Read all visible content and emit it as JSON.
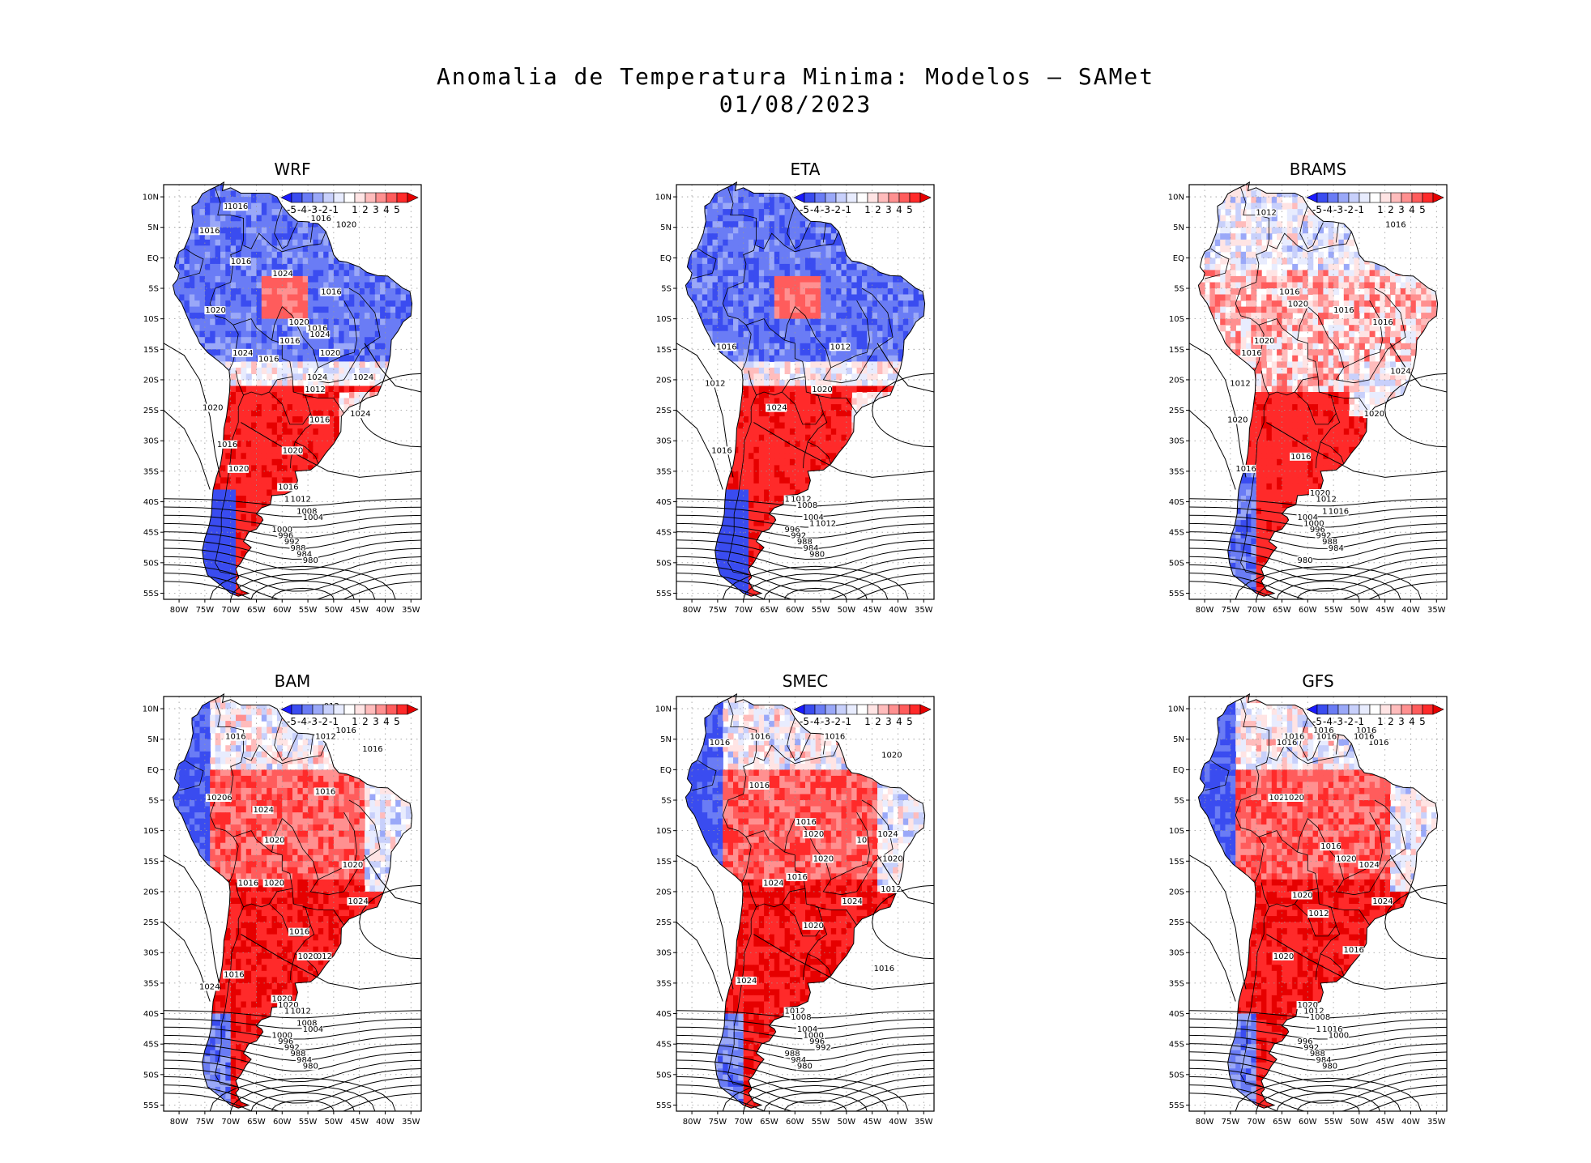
{
  "title_line1": "Anomalia de Temperatura Minima: Modelos — SAMet",
  "title_line2": "01/08/2023",
  "lat_ticks": [
    "10N",
    "5N",
    "EQ",
    "5S",
    "10S",
    "15S",
    "20S",
    "25S",
    "30S",
    "35S",
    "40S",
    "45S",
    "50S",
    "55S"
  ],
  "lon_ticks": [
    "80W",
    "75W",
    "70W",
    "65W",
    "60W",
    "55W",
    "50W",
    "45W",
    "40W",
    "35W"
  ],
  "colorbar": {
    "labels": [
      "-5",
      "-4",
      "-3",
      "-2",
      "-1",
      "1",
      "2",
      "3",
      "4",
      "5"
    ],
    "colors": [
      "#1a1aff",
      "#3a4cf0",
      "#6a7cf5",
      "#9aa8f8",
      "#c8d0fb",
      "#e8ecfe",
      "#ffffff",
      "#ffe4e4",
      "#ffbcbc",
      "#ff9090",
      "#ff5c5c",
      "#ff2a2a",
      "#e60000"
    ]
  },
  "panels": [
    {
      "title": "WRF",
      "regime": "cold_north",
      "isobars": [
        {
          "v": "1012",
          "lat": 8
        },
        {
          "v": "1016",
          "lat": 8
        },
        {
          "v": "1016",
          "lat": 6
        },
        {
          "v": "1020",
          "lat": 5
        },
        {
          "v": "1016",
          "lat": 4
        },
        {
          "v": "1016",
          "lat": -1
        },
        {
          "v": "1024",
          "lat": -3
        },
        {
          "v": "1016",
          "lat": -6
        },
        {
          "v": "1020",
          "lat": -9
        },
        {
          "v": "1020",
          "lat": -11
        },
        {
          "v": "1016",
          "lat": -12
        },
        {
          "v": "1024",
          "lat": -13
        },
        {
          "v": "1016",
          "lat": -14
        },
        {
          "v": "1024",
          "lat": -16
        },
        {
          "v": "1016",
          "lat": -17
        },
        {
          "v": "1020",
          "lat": -16
        },
        {
          "v": "1024",
          "lat": -20
        },
        {
          "v": "1024",
          "lat": -20
        },
        {
          "v": "1012",
          "lat": -22
        },
        {
          "v": "1020",
          "lat": -25
        },
        {
          "v": "1024",
          "lat": -26
        },
        {
          "v": "1016",
          "lat": -27
        },
        {
          "v": "1016",
          "lat": -31
        },
        {
          "v": "1020",
          "lat": -32
        },
        {
          "v": "1020",
          "lat": -35
        },
        {
          "v": "1016",
          "lat": -38
        },
        {
          "v": "1016",
          "lat": -40
        },
        {
          "v": "1012",
          "lat": -40
        },
        {
          "v": "1008",
          "lat": -42
        },
        {
          "v": "1004",
          "lat": -43
        },
        {
          "v": "1000",
          "lat": -45
        },
        {
          "v": "996",
          "lat": -46
        },
        {
          "v": "992",
          "lat": -47
        },
        {
          "v": "988",
          "lat": -48
        },
        {
          "v": "984",
          "lat": -49
        },
        {
          "v": "980",
          "lat": -50
        }
      ]
    },
    {
      "title": "ETA",
      "regime": "cold_north",
      "isobars": [
        {
          "v": "1012",
          "lat": -15
        },
        {
          "v": "1016",
          "lat": -15
        },
        {
          "v": "1012",
          "lat": -21
        },
        {
          "v": "1020",
          "lat": -22
        },
        {
          "v": "1024",
          "lat": -25
        },
        {
          "v": "1016",
          "lat": -32
        },
        {
          "v": "1020",
          "lat": -40
        },
        {
          "v": "1012",
          "lat": -40
        },
        {
          "v": "1008",
          "lat": -41
        },
        {
          "v": "1004",
          "lat": -43
        },
        {
          "v": "1000",
          "lat": -44
        },
        {
          "v": "1012",
          "lat": -44
        },
        {
          "v": "996",
          "lat": -45
        },
        {
          "v": "992",
          "lat": -46
        },
        {
          "v": "988",
          "lat": -47
        },
        {
          "v": "984",
          "lat": -48
        },
        {
          "v": "980",
          "lat": -49
        }
      ]
    },
    {
      "title": "BRAMS",
      "regime": "mixed",
      "isobars": [
        {
          "v": "1012",
          "lat": 7
        },
        {
          "v": "1016",
          "lat": 5
        },
        {
          "v": "1016",
          "lat": -6
        },
        {
          "v": "1020",
          "lat": -8
        },
        {
          "v": "1016",
          "lat": -9
        },
        {
          "v": "1016",
          "lat": -11
        },
        {
          "v": "1020",
          "lat": -14
        },
        {
          "v": "1016",
          "lat": -16
        },
        {
          "v": "1024",
          "lat": -19
        },
        {
          "v": "1012",
          "lat": -21
        },
        {
          "v": "1020",
          "lat": -26
        },
        {
          "v": "1020",
          "lat": -27
        },
        {
          "v": "1016",
          "lat": -33
        },
        {
          "v": "1016",
          "lat": -35
        },
        {
          "v": "1020",
          "lat": -39
        },
        {
          "v": "1012",
          "lat": -40
        },
        {
          "v": "1008",
          "lat": -42
        },
        {
          "v": "1016",
          "lat": -42
        },
        {
          "v": "1004",
          "lat": -43
        },
        {
          "v": "1000",
          "lat": -44
        },
        {
          "v": "996",
          "lat": -45
        },
        {
          "v": "992",
          "lat": -46
        },
        {
          "v": "988",
          "lat": -47
        },
        {
          "v": "984",
          "lat": -48
        },
        {
          "v": "980",
          "lat": -50
        }
      ]
    },
    {
      "title": "BAM",
      "regime": "warm",
      "isobars": [
        {
          "v": "012",
          "lat": 10
        },
        {
          "v": "1016",
          "lat": 6
        },
        {
          "v": "1012",
          "lat": 5
        },
        {
          "v": "1016",
          "lat": 5
        },
        {
          "v": "1016",
          "lat": 3
        },
        {
          "v": "1016",
          "lat": -4
        },
        {
          "v": "10206",
          "lat": -5
        },
        {
          "v": "1024",
          "lat": -7
        },
        {
          "v": "1020",
          "lat": -12
        },
        {
          "v": "1020",
          "lat": -16
        },
        {
          "v": "1020",
          "lat": -19
        },
        {
          "v": "1016",
          "lat": -19
        },
        {
          "v": "1024",
          "lat": -22
        },
        {
          "v": "1016",
          "lat": -27
        },
        {
          "v": "1012",
          "lat": -31
        },
        {
          "v": "1020",
          "lat": -31
        },
        {
          "v": "1016",
          "lat": -34
        },
        {
          "v": "1024",
          "lat": -36
        },
        {
          "v": "1020",
          "lat": -38
        },
        {
          "v": "1020",
          "lat": -39
        },
        {
          "v": "1016",
          "lat": -40
        },
        {
          "v": "1012",
          "lat": -40
        },
        {
          "v": "1008",
          "lat": -42
        },
        {
          "v": "1004",
          "lat": -43
        },
        {
          "v": "1000",
          "lat": -44
        },
        {
          "v": "996",
          "lat": -45
        },
        {
          "v": "992",
          "lat": -46
        },
        {
          "v": "988",
          "lat": -47
        },
        {
          "v": "984",
          "lat": -48
        },
        {
          "v": "980",
          "lat": -49
        }
      ]
    },
    {
      "title": "SMEC",
      "regime": "warm",
      "isobars": [
        {
          "v": "1016",
          "lat": 5
        },
        {
          "v": "1016",
          "lat": 5
        },
        {
          "v": "1016",
          "lat": 4
        },
        {
          "v": "1020",
          "lat": 2
        },
        {
          "v": "1016",
          "lat": -3
        },
        {
          "v": "1016",
          "lat": -9
        },
        {
          "v": "1024",
          "lat": -11
        },
        {
          "v": "1020",
          "lat": -11
        },
        {
          "v": "10",
          "lat": -12
        },
        {
          "v": "1020",
          "lat": -15
        },
        {
          "v": "1020",
          "lat": -15
        },
        {
          "v": "1016",
          "lat": -18
        },
        {
          "v": "1024",
          "lat": -19
        },
        {
          "v": "1012",
          "lat": -20
        },
        {
          "v": "1024",
          "lat": -22
        },
        {
          "v": "1020",
          "lat": -26
        },
        {
          "v": "1016",
          "lat": -33
        },
        {
          "v": "1024",
          "lat": -35
        },
        {
          "v": "1012",
          "lat": -40
        },
        {
          "v": "1008",
          "lat": -41
        },
        {
          "v": "1004",
          "lat": -43
        },
        {
          "v": "1000",
          "lat": -44
        },
        {
          "v": "996",
          "lat": -45
        },
        {
          "v": "992",
          "lat": -46
        },
        {
          "v": "988",
          "lat": -47
        },
        {
          "v": "984",
          "lat": -48
        },
        {
          "v": "980",
          "lat": -49
        }
      ]
    },
    {
      "title": "GFS",
      "regime": "warm",
      "isobars": [
        {
          "v": "1016",
          "lat": 6
        },
        {
          "v": "1016",
          "lat": 6
        },
        {
          "v": "1016",
          "lat": 5
        },
        {
          "v": "12",
          "lat": 5
        },
        {
          "v": "1016",
          "lat": 5
        },
        {
          "v": "1016",
          "lat": 4
        },
        {
          "v": "1016",
          "lat": 4
        },
        {
          "v": "1016",
          "lat": 5
        },
        {
          "v": "1020",
          "lat": -5
        },
        {
          "v": "1020",
          "lat": -5
        },
        {
          "v": "1016",
          "lat": -13
        },
        {
          "v": "1020",
          "lat": -15
        },
        {
          "v": "1024",
          "lat": -16
        },
        {
          "v": "1020",
          "lat": -21
        },
        {
          "v": "1024",
          "lat": -22
        },
        {
          "v": "1012",
          "lat": -24
        },
        {
          "v": "1016",
          "lat": -30
        },
        {
          "v": "1020",
          "lat": -31
        },
        {
          "v": "1020",
          "lat": -39
        },
        {
          "v": "1012",
          "lat": -40
        },
        {
          "v": "1008",
          "lat": -41
        },
        {
          "v": "1004",
          "lat": -43
        },
        {
          "v": "1016",
          "lat": -43
        },
        {
          "v": "1000",
          "lat": -44
        },
        {
          "v": "996",
          "lat": -45
        },
        {
          "v": "992",
          "lat": -46
        },
        {
          "v": "988",
          "lat": -47
        },
        {
          "v": "984",
          "lat": -48
        },
        {
          "v": "980",
          "lat": -49
        }
      ]
    }
  ]
}
